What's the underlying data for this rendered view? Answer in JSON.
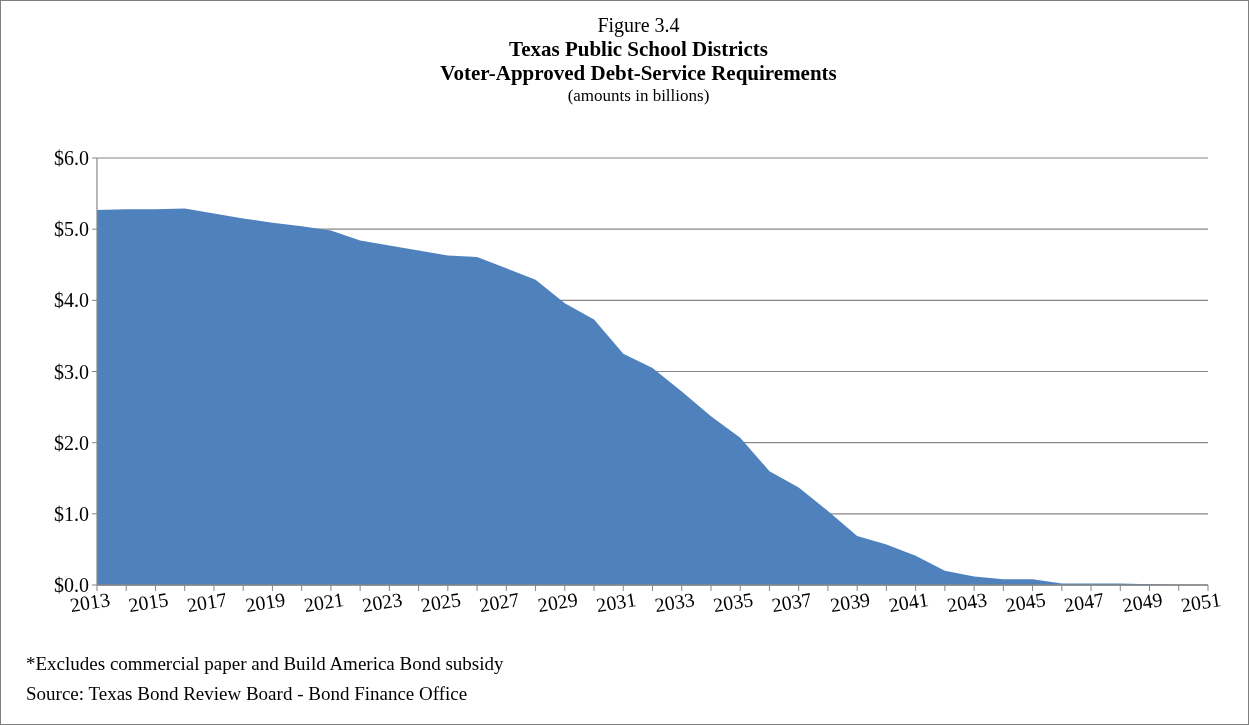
{
  "chart_data": {
    "type": "area",
    "title": "Figure 3.4\nTexas Public School Districts\nVoter-Approved Debt-Service Requirements",
    "subtitle": "(amounts in billions)",
    "categories": [
      "2013",
      null,
      "2015",
      null,
      "2017",
      null,
      "2019",
      null,
      "2021",
      null,
      "2023",
      null,
      "2025",
      null,
      "2027",
      null,
      "2029",
      null,
      "2031",
      null,
      "2033",
      null,
      "2035",
      null,
      "2037",
      null,
      "2039",
      null,
      "2041",
      null,
      "2043",
      null,
      "2045",
      null,
      "2047",
      null,
      "2049",
      null,
      "2051"
    ],
    "series": [
      {
        "color": "#4f81bd",
        "values": [
          5.27,
          5.28,
          5.28,
          5.29,
          5.22,
          5.15,
          5.09,
          5.04,
          4.98,
          4.84,
          4.77,
          4.7,
          4.63,
          4.61,
          4.45,
          4.29,
          3.96,
          3.73,
          3.25,
          3.05,
          2.72,
          2.37,
          2.07,
          1.6,
          1.37,
          1.04,
          0.69,
          0.57,
          0.41,
          0.2,
          0.12,
          0.08,
          0.08,
          0.02,
          0.02,
          0.02,
          0.01,
          0.0,
          0.0
        ]
      }
    ],
    "ylim": [
      0,
      6
    ],
    "yticks": [
      {
        "value": 0,
        "label": "$0.0"
      },
      {
        "value": 1,
        "label": "$1.0"
      },
      {
        "value": 2,
        "label": "$2.0"
      },
      {
        "value": 3,
        "label": "$3.0"
      },
      {
        "value": 4,
        "label": "$4.0"
      },
      {
        "value": 5,
        "label": "$5.0"
      },
      {
        "value": 6,
        "label": "$6.0"
      }
    ],
    "grid": "y",
    "annotations": [
      "*Excludes commercial paper and Build America Bond subsidy",
      "Source: Texas Bond Review Board - Bond Finance Office"
    ]
  }
}
